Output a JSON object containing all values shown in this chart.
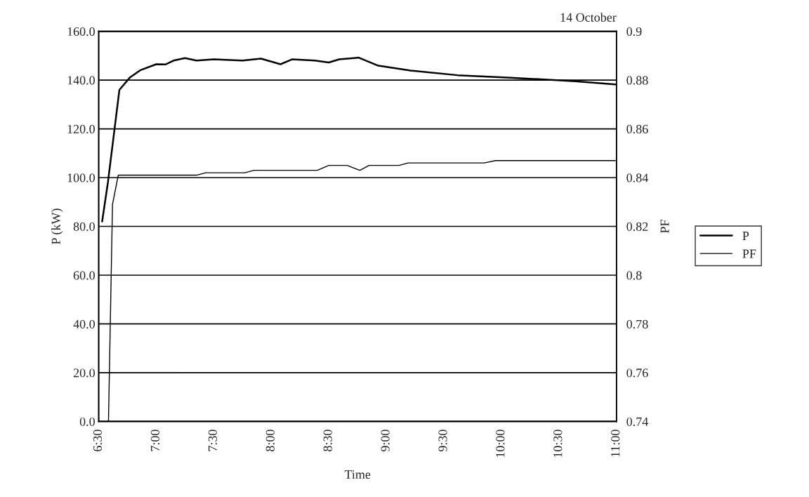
{
  "chart_data": {
    "type": "line",
    "title": "14 October",
    "xlabel": "Time",
    "ylabel": "P (kW)",
    "y2label": "PF",
    "xlim": [
      6.5,
      11.0
    ],
    "xticks": [
      {
        "value": 6.5,
        "label": "6:30"
      },
      {
        "value": 7.0,
        "label": "7:00"
      },
      {
        "value": 7.5,
        "label": "7:30"
      },
      {
        "value": 8.0,
        "label": "8:00"
      },
      {
        "value": 8.5,
        "label": "8:30"
      },
      {
        "value": 9.0,
        "label": "9:00"
      },
      {
        "value": 9.5,
        "label": "9:30"
      },
      {
        "value": 10.0,
        "label": "10:00"
      },
      {
        "value": 10.5,
        "label": "10:30"
      },
      {
        "value": 11.0,
        "label": "11:00"
      }
    ],
    "ylim": [
      0,
      160
    ],
    "yticks": [
      {
        "value": 0,
        "label": "0.0"
      },
      {
        "value": 20,
        "label": "20.0"
      },
      {
        "value": 40,
        "label": "40.0"
      },
      {
        "value": 60,
        "label": "60.0"
      },
      {
        "value": 80,
        "label": "80.0"
      },
      {
        "value": 100,
        "label": "100.0"
      },
      {
        "value": 120,
        "label": "120.0"
      },
      {
        "value": 140,
        "label": "140.0"
      },
      {
        "value": 160,
        "label": "160.0"
      }
    ],
    "y2lim": [
      0.74,
      0.9
    ],
    "y2ticks": [
      0.74,
      0.76,
      0.78,
      0.8,
      0.82,
      0.84,
      0.86,
      0.88,
      0.9
    ],
    "grid": "y",
    "legend": "right",
    "marker": "none",
    "line_style": "solid",
    "series": [
      {
        "name": "P",
        "color": "#000000",
        "x": [
          6.53,
          6.58,
          6.68,
          6.77,
          6.86,
          7.0,
          7.08,
          7.15,
          7.25,
          7.35,
          7.5,
          7.75,
          7.91,
          8.08,
          8.18,
          8.38,
          8.5,
          8.59,
          8.76,
          8.93,
          9.21,
          9.62,
          10.05,
          10.43,
          10.64,
          10.99
        ],
        "values": [
          82,
          98,
          136,
          141,
          144,
          146.5,
          146.4,
          148,
          149,
          148,
          148.5,
          148,
          148.8,
          146.5,
          148.5,
          148,
          147.2,
          148.5,
          149.2,
          145.9,
          143.9,
          142,
          141,
          140.1,
          139.5,
          138.2
        ]
      },
      {
        "name": "PF",
        "color": "#000000",
        "axis": "y2",
        "x": [
          6.585,
          6.62,
          6.67,
          7.35,
          7.43,
          7.77,
          7.85,
          8.4,
          8.5,
          8.66,
          8.77,
          8.85,
          9.11,
          9.19,
          9.85,
          9.95,
          10.99
        ],
        "values": [
          0.74,
          0.829,
          0.841,
          0.841,
          0.842,
          0.842,
          0.843,
          0.843,
          0.845,
          0.845,
          0.843,
          0.845,
          0.845,
          0.846,
          0.846,
          0.847,
          0.847
        ]
      }
    ]
  }
}
